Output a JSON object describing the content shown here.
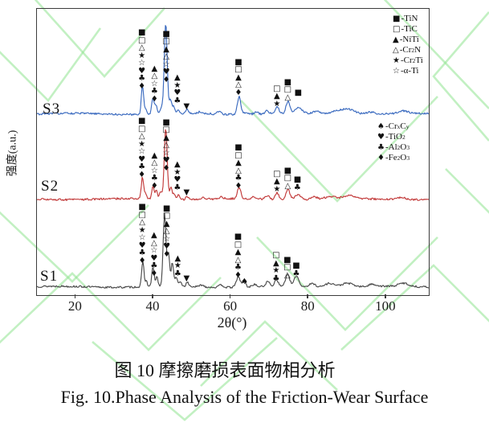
{
  "figure": {
    "caption_zh": "图 10 摩擦磨损表面物相分析",
    "caption_en": "Fig. 10.Phase Analysis of the Friction-Wear Surface"
  },
  "colors": {
    "frame": "#3c3c3c",
    "watermark": "#8fe48f",
    "marker": "#111111",
    "s3_blue": "#3a6abf",
    "s2_red": "#c23a3a",
    "s1_gray": "#4a4a4a"
  },
  "chart_data": {
    "type": "line",
    "title": "",
    "xlabel": "2θ(°)",
    "ylabel": "强度(a.u.)",
    "xlim": [
      10,
      111
    ],
    "x_ticks": [
      20,
      40,
      60,
      80,
      100
    ],
    "grid": false,
    "legend1": [
      {
        "marker": "■",
        "formula": "TiN"
      },
      {
        "marker": "□",
        "formula": "TiC"
      },
      {
        "marker": "▲",
        "formula": "NiTi"
      },
      {
        "marker": "△",
        "formula": "Cr_2_N"
      },
      {
        "marker": "★",
        "formula": "Cr_2_Ti"
      },
      {
        "marker": "☆",
        "formula": "α-Ti"
      }
    ],
    "legend2": [
      {
        "marker": "♠",
        "formula": "Cr_x_C_y_"
      },
      {
        "marker": "♥",
        "formula": "TiO_2_"
      },
      {
        "marker": "♣",
        "formula": "Al_2_O_3_"
      },
      {
        "marker": "♦",
        "formula": "Fe_2_O_3_"
      }
    ],
    "series": [
      {
        "name": "S3",
        "color": "#3a6abf",
        "baseline": 133,
        "seed": 31,
        "label_pos": {
          "left": 7,
          "top": 114
        },
        "peaks": [
          [
            37.2,
            36,
            0.3
          ],
          [
            38.1,
            7,
            0.25
          ],
          [
            39.9,
            20,
            0.3
          ],
          [
            40.7,
            11,
            0.28
          ],
          [
            42.1,
            8,
            0.3
          ],
          [
            43.2,
            112,
            0.38
          ],
          [
            44.4,
            18,
            0.3
          ],
          [
            45.2,
            9,
            0.3
          ],
          [
            46.4,
            5,
            0.3
          ],
          [
            48.7,
            5,
            0.35
          ],
          [
            52,
            2,
            0.5
          ],
          [
            57,
            3,
            0.5
          ],
          [
            62.1,
            22,
            0.45
          ],
          [
            64,
            2.5,
            0.5
          ],
          [
            66.5,
            3,
            0.5
          ],
          [
            69.3,
            4,
            0.5
          ],
          [
            71.9,
            9,
            0.45
          ],
          [
            74.7,
            15,
            0.5
          ],
          [
            77.5,
            7,
            0.9
          ],
          [
            82,
            3,
            0.8
          ],
          [
            87.5,
            4,
            1.6
          ],
          [
            90.5,
            6,
            1.6
          ],
          [
            96,
            2.5,
            1.0
          ],
          [
            104.5,
            3,
            1.2
          ]
        ],
        "stacks": [
          {
            "x": 37.1,
            "above": 32,
            "symbols": [
              "■",
              "□",
              "△",
              "★",
              "☆",
              "♥",
              "♣",
              "♦"
            ]
          },
          {
            "x": 40.4,
            "above": 16,
            "symbols": [
              "▲",
              "△",
              "☆",
              "♣",
              "♦"
            ]
          },
          {
            "x": 43.4,
            "above": 40,
            "symbols": [
              "■",
              "□",
              "▲",
              "△",
              "☆",
              "♥",
              "♦"
            ]
          },
          {
            "x": 46.3,
            "above": 14,
            "symbols": [
              "▲",
              "★",
              "♥",
              "♣"
            ]
          },
          {
            "x": 48.8,
            "above": 7,
            "symbols": [
              "▼"
            ]
          },
          {
            "x": 62.0,
            "above": 24,
            "symbols": [
              "■",
              "□",
              "▲",
              "△",
              "♦"
            ]
          },
          {
            "x": 71.9,
            "above": 10,
            "symbols": [
              "□",
              "▲",
              "★"
            ]
          },
          {
            "x": 74.7,
            "above": 18,
            "symbols": [
              "■",
              "□",
              "△"
            ]
          },
          {
            "x": 77.4,
            "above": 24,
            "symbols": [
              "■"
            ]
          }
        ]
      },
      {
        "name": "S2",
        "color": "#c23a3a",
        "baseline": 239,
        "seed": 72,
        "label_pos": {
          "left": 5,
          "top": 210
        },
        "peaks": [
          [
            37.2,
            27,
            0.3
          ],
          [
            38.0,
            6,
            0.25
          ],
          [
            39.9,
            17,
            0.3
          ],
          [
            40.8,
            12,
            0.28
          ],
          [
            41.9,
            10,
            0.3
          ],
          [
            43.2,
            88,
            0.38
          ],
          [
            44.5,
            15,
            0.3
          ],
          [
            45.3,
            8,
            0.3
          ],
          [
            46.4,
            6,
            0.3
          ],
          [
            48.7,
            4,
            0.35
          ],
          [
            53,
            2,
            0.5
          ],
          [
            57.5,
            2.5,
            0.5
          ],
          [
            62.1,
            14,
            0.45
          ],
          [
            66,
            2.5,
            0.5
          ],
          [
            69.4,
            4,
            0.5
          ],
          [
            71.9,
            8,
            0.45
          ],
          [
            74.7,
            13,
            0.5
          ],
          [
            77.3,
            6,
            0.8
          ],
          [
            81.5,
            3,
            0.8
          ],
          [
            85.5,
            3,
            1.2
          ],
          [
            90.5,
            4,
            1.5
          ],
          [
            104,
            2.5,
            1.2
          ]
        ],
        "stacks": [
          {
            "x": 37.1,
            "above": 28,
            "symbols": [
              "■",
              "□",
              "△",
              "★",
              "☆",
              "♥",
              "♣",
              "♦"
            ]
          },
          {
            "x": 40.4,
            "above": 14,
            "symbols": [
              "▲",
              "△",
              "☆",
              "♣",
              "♦"
            ]
          },
          {
            "x": 43.4,
            "above": 36,
            "symbols": [
              "■",
              "□",
              "▲",
              "△",
              "☆",
              "♥",
              "♦"
            ]
          },
          {
            "x": 46.3,
            "above": 12,
            "symbols": [
              "▲",
              "★",
              "♥",
              "♣"
            ]
          },
          {
            "x": 48.8,
            "above": 6,
            "symbols": [
              "▼"
            ]
          },
          {
            "x": 62.0,
            "above": 14,
            "symbols": [
              "■",
              "□",
              "▲",
              "△",
              "♣",
              "♦"
            ]
          },
          {
            "x": 71.9,
            "above": 10,
            "symbols": [
              "□",
              "▲",
              "★"
            ]
          },
          {
            "x": 74.7,
            "above": 14,
            "symbols": [
              "■",
              "□",
              "△"
            ]
          },
          {
            "x": 77.2,
            "above": 12,
            "symbols": [
              "■",
              "♣"
            ]
          }
        ]
      },
      {
        "name": "S1",
        "color": "#4a4a4a",
        "baseline": 348,
        "seed": 13,
        "label_pos": {
          "left": 4,
          "top": 322
        },
        "peaks": [
          [
            37.3,
            31,
            0.3
          ],
          [
            38.2,
            7,
            0.25
          ],
          [
            39.9,
            24,
            0.3
          ],
          [
            40.9,
            12,
            0.28
          ],
          [
            42.9,
            90,
            0.36
          ],
          [
            43.9,
            42,
            0.3
          ],
          [
            44.9,
            30,
            0.3
          ],
          [
            45.9,
            12,
            0.3
          ],
          [
            47,
            6,
            0.3
          ],
          [
            48.8,
            5,
            0.35
          ],
          [
            52.5,
            2.5,
            0.5
          ],
          [
            57.5,
            3,
            0.5
          ],
          [
            61.9,
            13,
            0.5
          ],
          [
            63.4,
            7,
            0.4
          ],
          [
            66,
            3,
            0.5
          ],
          [
            69.5,
            6,
            0.5
          ],
          [
            71.7,
            9,
            0.45
          ],
          [
            74.6,
            14,
            0.55
          ],
          [
            76.9,
            13,
            0.6
          ],
          [
            81,
            4,
            0.8
          ],
          [
            85.5,
            5,
            1.2
          ],
          [
            90,
            5,
            1.5
          ],
          [
            96.5,
            3,
            1.0
          ],
          [
            104.5,
            4,
            1.2
          ]
        ],
        "stacks": [
          {
            "x": 37.2,
            "above": 30,
            "symbols": [
              "■",
              "□",
              "△",
              "★",
              "☆",
              "♥",
              "♣",
              "♦"
            ]
          },
          {
            "x": 40.3,
            "above": 14,
            "symbols": [
              "▲",
              "△",
              "☆",
              "♥",
              "♣",
              "♦"
            ]
          },
          {
            "x": 43.5,
            "above": 38,
            "symbols": [
              "■",
              "□",
              "▲",
              "△",
              "☆",
              "♥",
              "♦"
            ]
          },
          {
            "x": 46.4,
            "above": 14,
            "symbols": [
              "▲",
              "★",
              "♣"
            ]
          },
          {
            "x": 48.8,
            "above": 8,
            "symbols": [
              "▼"
            ]
          },
          {
            "x": 61.9,
            "above": 12,
            "symbols": [
              "■",
              "□",
              "▲",
              "△",
              "♣",
              "♦"
            ]
          },
          {
            "x": 63.6,
            "above": 4,
            "symbols": [
              "♠"
            ]
          },
          {
            "x": 71.7,
            "above": 8,
            "symbols": [
              "□",
              "▲",
              "★",
              "♣"
            ]
          },
          {
            "x": 74.6,
            "above": 12,
            "symbols": [
              "■",
              "□",
              "△"
            ]
          },
          {
            "x": 76.9,
            "above": 14,
            "symbols": [
              "■",
              "♣"
            ]
          }
        ]
      }
    ]
  }
}
